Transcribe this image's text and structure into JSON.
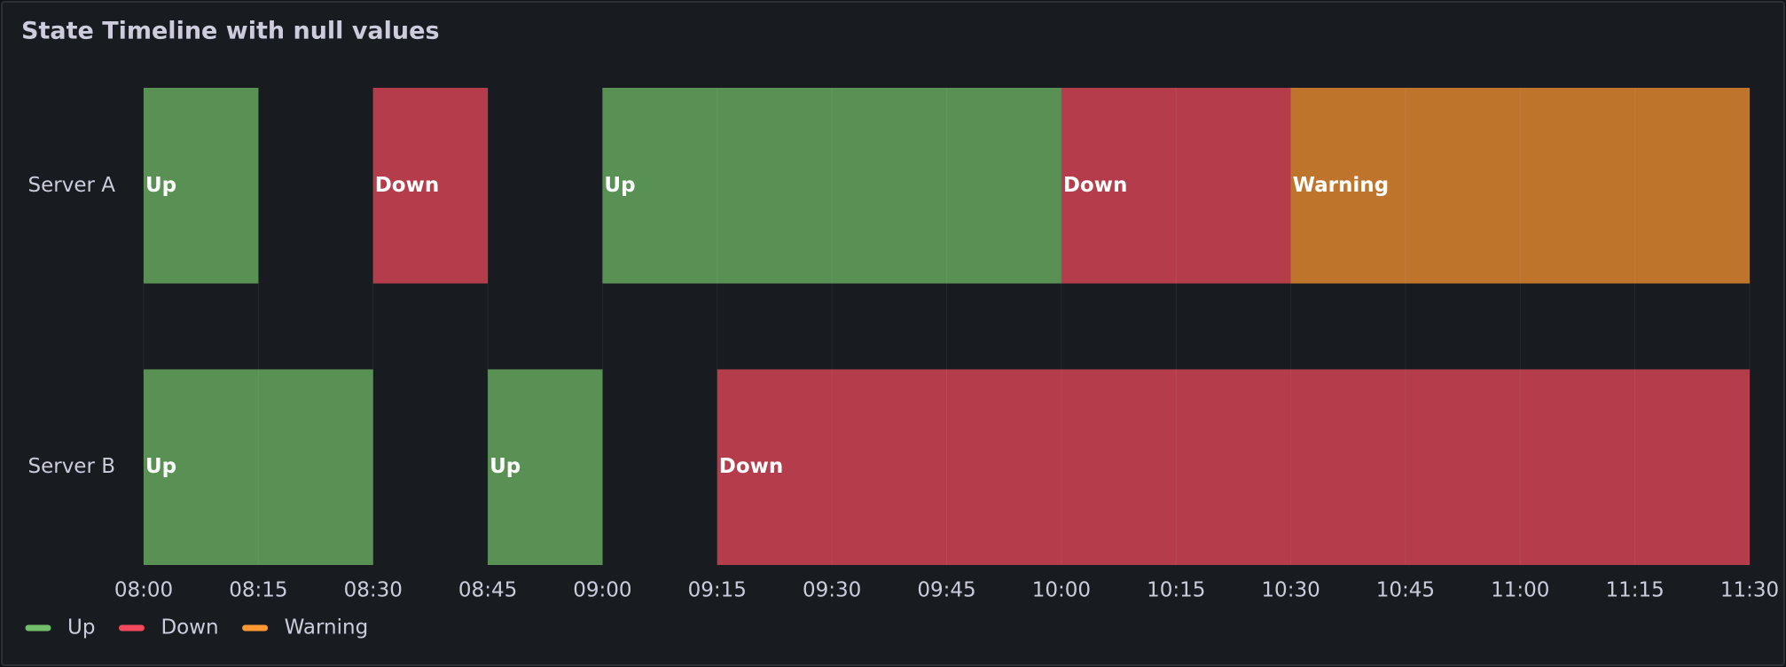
{
  "chart_data": {
    "type": "state-timeline",
    "title": "State Timeline with null values",
    "x": [
      "08:00",
      "08:15",
      "08:30",
      "08:45",
      "09:00",
      "09:15",
      "09:30",
      "09:45",
      "10:00",
      "10:15",
      "10:30",
      "10:45",
      "11:00",
      "11:15",
      "11:30"
    ],
    "rows": [
      {
        "name": "Server A",
        "values": [
          "Up",
          null,
          "Down",
          null,
          "Up",
          "Up",
          "Up",
          "Up",
          "Down",
          "Down",
          "Warning",
          "Warning",
          "Warning",
          "Warning"
        ]
      },
      {
        "name": "Server B",
        "values": [
          "Up",
          "Up",
          null,
          "Up",
          null,
          "Down",
          "Down",
          "Down",
          "Down",
          "Down",
          "Down",
          "Down",
          "Down",
          "Down"
        ]
      }
    ],
    "states": [
      {
        "name": "Up",
        "color": "#73bf69"
      },
      {
        "name": "Down",
        "color": "#f2495c"
      },
      {
        "name": "Warning",
        "color": "#ff9830"
      }
    ],
    "grid": true
  }
}
